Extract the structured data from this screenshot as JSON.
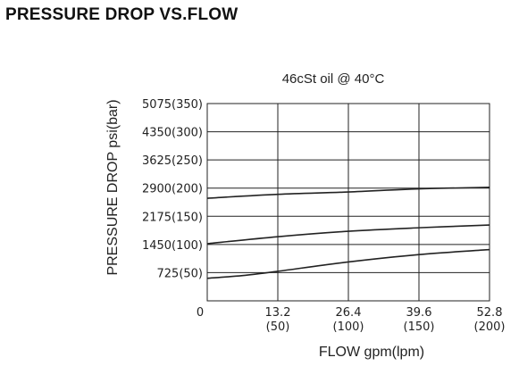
{
  "page": {
    "title": "PRESSURE DROP VS.FLOW"
  },
  "chart_data": {
    "type": "line",
    "title": "46cSt oil @ 40°C",
    "xlabel": "FLOW  gpm(lpm)",
    "ylabel": "PRESSURE DROP psi(bar)",
    "xlim": [
      0,
      52.8
    ],
    "ylim": [
      0,
      5075
    ],
    "grid": true,
    "x_ticks": [
      {
        "value": 0,
        "label": "0",
        "sublabel": ""
      },
      {
        "value": 13.2,
        "label": "13.2",
        "sublabel": "(50)"
      },
      {
        "value": 26.4,
        "label": "26.4",
        "sublabel": "(100)"
      },
      {
        "value": 39.6,
        "label": "39.6",
        "sublabel": "(150)"
      },
      {
        "value": 52.8,
        "label": "52.8",
        "sublabel": "(200)"
      }
    ],
    "y_ticks": [
      {
        "value": 725,
        "label": "725(50)"
      },
      {
        "value": 1450,
        "label": "1450(100)"
      },
      {
        "value": 2175,
        "label": "2175(150)"
      },
      {
        "value": 2900,
        "label": "2900(200)"
      },
      {
        "value": 3625,
        "label": "3625(250)"
      },
      {
        "value": 4350,
        "label": "4350(300)"
      },
      {
        "value": 5075,
        "label": "5075(350)"
      }
    ],
    "series": [
      {
        "x": [
          0,
          13.2,
          26.4,
          39.6,
          52.8
        ],
        "y": [
          2640,
          2740,
          2800,
          2880,
          2920
        ]
      },
      {
        "x": [
          0,
          13.2,
          26.4,
          39.6,
          52.8
        ],
        "y": [
          1470,
          1650,
          1790,
          1880,
          1950
        ]
      },
      {
        "x": [
          0,
          6.6,
          13.2,
          26.4,
          39.6,
          52.8
        ],
        "y": [
          580,
          650,
          760,
          1000,
          1190,
          1320
        ]
      }
    ]
  }
}
